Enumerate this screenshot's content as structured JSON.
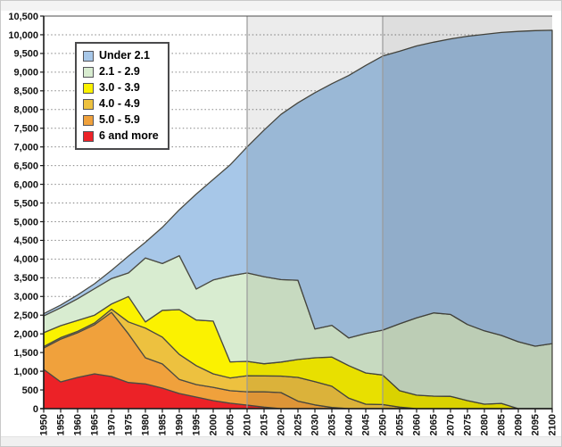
{
  "chart_data": {
    "type": "area",
    "stacked": true,
    "title": "",
    "xlabel": "",
    "ylabel": "",
    "categories": [
      1950,
      1955,
      1960,
      1965,
      1970,
      1975,
      1980,
      1985,
      1990,
      1995,
      2000,
      2005,
      2010,
      2015,
      2020,
      2025,
      2030,
      2035,
      2040,
      2045,
      2050,
      2055,
      2060,
      2065,
      2070,
      2075,
      2080,
      2085,
      2090,
      2095,
      2100
    ],
    "series": [
      {
        "name": "6 and more",
        "color": "#EC2227",
        "values": [
          1050,
          715,
          835,
          930,
          860,
          700,
          660,
          550,
          405,
          310,
          215,
          145,
          95,
          40,
          0,
          0,
          0,
          0,
          0,
          0,
          0,
          0,
          0,
          0,
          0,
          0,
          0,
          0,
          0,
          0,
          0
        ]
      },
      {
        "name": "5.0 - 5.9",
        "color": "#F0A13C",
        "values": [
          570,
          1145,
          1195,
          1315,
          1715,
          1300,
          700,
          645,
          375,
          335,
          355,
          335,
          355,
          410,
          430,
          200,
          100,
          30,
          0,
          0,
          0,
          0,
          0,
          0,
          0,
          0,
          0,
          0,
          0,
          0,
          0
        ]
      },
      {
        "name": "4.0 - 4.9",
        "color": "#EDC13F",
        "values": [
          40,
          40,
          40,
          45,
          85,
          320,
          795,
          720,
          670,
          505,
          360,
          340,
          430,
          425,
          440,
          635,
          620,
          570,
          280,
          120,
          110,
          40,
          0,
          0,
          0,
          0,
          0,
          0,
          0,
          0,
          0
        ]
      },
      {
        "name": "3.0 - 3.9",
        "color": "#FBF200",
        "values": [
          370,
          320,
          290,
          210,
          140,
          680,
          165,
          715,
          1200,
          1220,
          1410,
          430,
          385,
          325,
          375,
          480,
          640,
          780,
          870,
          835,
          790,
          440,
          360,
          335,
          330,
          215,
          120,
          140,
          0,
          0,
          0
        ]
      },
      {
        "name": "2.1 - 2.9",
        "color": "#D8ECD0",
        "values": [
          450,
          480,
          580,
          710,
          680,
          630,
          1710,
          1250,
          1440,
          830,
          1100,
          2300,
          2365,
          2330,
          2205,
          2120,
          770,
          850,
          740,
          1055,
          1200,
          1790,
          2070,
          2225,
          2190,
          2035,
          1960,
          1820,
          1790,
          1670,
          1740
        ]
      },
      {
        "name": "Under 2.1",
        "color": "#A7C7E8",
        "values": [
          60,
          70,
          100,
          130,
          220,
          450,
          420,
          970,
          1230,
          2540,
          2690,
          2970,
          3370,
          3920,
          4420,
          4745,
          6320,
          6460,
          7020,
          7170,
          7330,
          7290,
          7270,
          7240,
          7370,
          7710,
          7930,
          8100,
          8300,
          8440,
          8380
        ]
      }
    ],
    "legend": {
      "position": "top-left",
      "order_top_to_bottom": [
        "Under 2.1",
        "2.1 - 2.9",
        "3.0 - 3.9",
        "4.0 - 4.9",
        "5.0 - 5.9",
        "6 and more"
      ]
    },
    "y_axis": {
      "min": 0,
      "max": 10500,
      "step": 500
    },
    "x_axis": {
      "min": 1950,
      "max": 2100,
      "step": 5
    },
    "grid": "dotted-horizontal",
    "vertical_lines": [
      2010,
      2050
    ],
    "highlight_regions": [
      {
        "from": 2010,
        "to": 2050,
        "shade": "rgba(0,0,0,0.075)"
      },
      {
        "from": 2050,
        "to": 2100,
        "shade": "rgba(0,0,0,0.13)"
      }
    ],
    "colors": {
      "outline": "#4b4b43",
      "axis": "#1a1a1a",
      "grid": "#868686",
      "plot_border_top": "#4d4d4d",
      "vertical_line": "#9a9a9a",
      "plot_background": "#ffffff"
    }
  }
}
